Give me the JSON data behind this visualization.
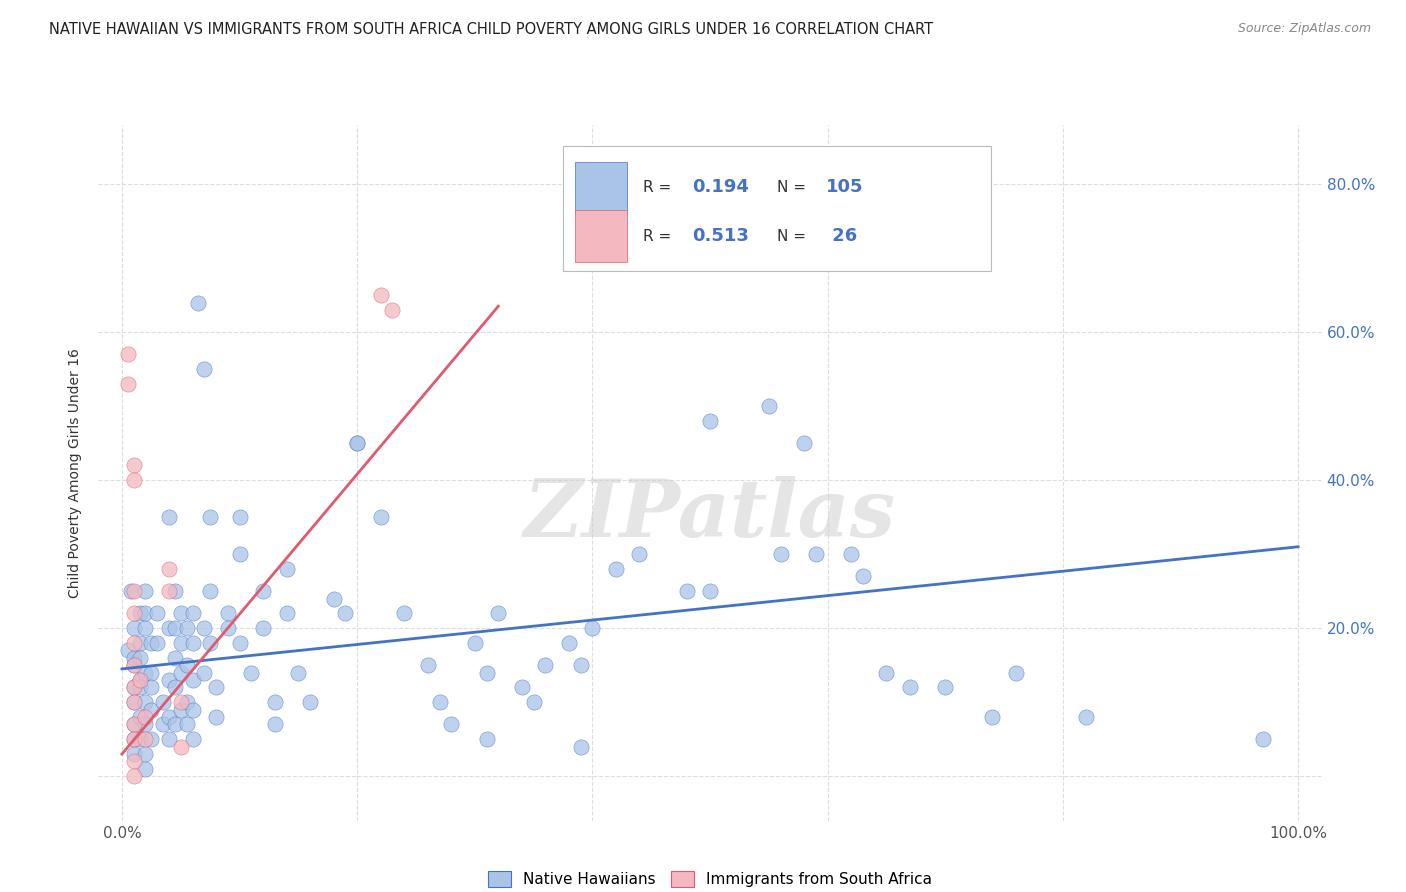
{
  "title": "NATIVE HAWAIIAN VS IMMIGRANTS FROM SOUTH AFRICA CHILD POVERTY AMONG GIRLS UNDER 16 CORRELATION CHART",
  "source": "Source: ZipAtlas.com",
  "ylabel": "Child Poverty Among Girls Under 16",
  "xlim": [
    -0.02,
    1.02
  ],
  "ylim": [
    -0.06,
    0.88
  ],
  "xticks": [
    0.0,
    0.2,
    0.4,
    0.6,
    0.8,
    1.0
  ],
  "xticklabels": [
    "0.0%",
    "",
    "",
    "",
    "",
    "100.0%"
  ],
  "yticks": [
    0.0,
    0.2,
    0.4,
    0.6,
    0.8
  ],
  "yticklabels_right": [
    "",
    "20.0%",
    "40.0%",
    "60.0%",
    "80.0%"
  ],
  "grid_color": "#dddddd",
  "background_color": "#ffffff",
  "watermark": "ZIPatlas",
  "label1": "Native Hawaiians",
  "label2": "Immigrants from South Africa",
  "color1": "#aac4e8",
  "color2": "#f4b8c0",
  "line_color1": "#4472c4",
  "line_color2": "#e05a6e",
  "r_n_color": "#4472c4",
  "blue_scatter": [
    [
      0.005,
      0.17
    ],
    [
      0.008,
      0.25
    ],
    [
      0.01,
      0.2
    ],
    [
      0.01,
      0.16
    ],
    [
      0.01,
      0.1
    ],
    [
      0.01,
      0.07
    ],
    [
      0.01,
      0.05
    ],
    [
      0.01,
      0.12
    ],
    [
      0.01,
      0.03
    ],
    [
      0.01,
      0.15
    ],
    [
      0.015,
      0.22
    ],
    [
      0.015,
      0.18
    ],
    [
      0.015,
      0.13
    ],
    [
      0.015,
      0.08
    ],
    [
      0.015,
      0.05
    ],
    [
      0.015,
      0.12
    ],
    [
      0.015,
      0.16
    ],
    [
      0.02,
      0.25
    ],
    [
      0.02,
      0.2
    ],
    [
      0.02,
      0.22
    ],
    [
      0.02,
      0.1
    ],
    [
      0.02,
      0.07
    ],
    [
      0.02,
      0.14
    ],
    [
      0.02,
      0.03
    ],
    [
      0.02,
      0.01
    ],
    [
      0.025,
      0.18
    ],
    [
      0.025,
      0.14
    ],
    [
      0.025,
      0.09
    ],
    [
      0.025,
      0.05
    ],
    [
      0.025,
      0.12
    ],
    [
      0.03,
      0.22
    ],
    [
      0.03,
      0.18
    ],
    [
      0.035,
      0.1
    ],
    [
      0.035,
      0.07
    ],
    [
      0.04,
      0.2
    ],
    [
      0.04,
      0.35
    ],
    [
      0.04,
      0.13
    ],
    [
      0.04,
      0.08
    ],
    [
      0.04,
      0.05
    ],
    [
      0.045,
      0.25
    ],
    [
      0.045,
      0.2
    ],
    [
      0.045,
      0.16
    ],
    [
      0.045,
      0.12
    ],
    [
      0.045,
      0.07
    ],
    [
      0.05,
      0.18
    ],
    [
      0.05,
      0.22
    ],
    [
      0.05,
      0.09
    ],
    [
      0.05,
      0.14
    ],
    [
      0.055,
      0.2
    ],
    [
      0.055,
      0.15
    ],
    [
      0.055,
      0.1
    ],
    [
      0.055,
      0.07
    ],
    [
      0.06,
      0.22
    ],
    [
      0.06,
      0.18
    ],
    [
      0.06,
      0.13
    ],
    [
      0.06,
      0.09
    ],
    [
      0.06,
      0.05
    ],
    [
      0.065,
      0.64
    ],
    [
      0.07,
      0.55
    ],
    [
      0.07,
      0.14
    ],
    [
      0.07,
      0.2
    ],
    [
      0.075,
      0.25
    ],
    [
      0.075,
      0.35
    ],
    [
      0.075,
      0.18
    ],
    [
      0.08,
      0.12
    ],
    [
      0.08,
      0.08
    ],
    [
      0.09,
      0.22
    ],
    [
      0.09,
      0.2
    ],
    [
      0.1,
      0.35
    ],
    [
      0.1,
      0.3
    ],
    [
      0.1,
      0.18
    ],
    [
      0.11,
      0.14
    ],
    [
      0.12,
      0.25
    ],
    [
      0.12,
      0.2
    ],
    [
      0.13,
      0.1
    ],
    [
      0.13,
      0.07
    ],
    [
      0.14,
      0.28
    ],
    [
      0.14,
      0.22
    ],
    [
      0.15,
      0.14
    ],
    [
      0.16,
      0.1
    ],
    [
      0.18,
      0.24
    ],
    [
      0.19,
      0.22
    ],
    [
      0.2,
      0.45
    ],
    [
      0.2,
      0.45
    ],
    [
      0.22,
      0.35
    ],
    [
      0.24,
      0.22
    ],
    [
      0.26,
      0.15
    ],
    [
      0.27,
      0.1
    ],
    [
      0.28,
      0.07
    ],
    [
      0.3,
      0.18
    ],
    [
      0.31,
      0.14
    ],
    [
      0.31,
      0.05
    ],
    [
      0.32,
      0.22
    ],
    [
      0.34,
      0.12
    ],
    [
      0.35,
      0.1
    ],
    [
      0.36,
      0.15
    ],
    [
      0.38,
      0.18
    ],
    [
      0.39,
      0.15
    ],
    [
      0.39,
      0.04
    ],
    [
      0.4,
      0.2
    ],
    [
      0.42,
      0.28
    ],
    [
      0.44,
      0.3
    ],
    [
      0.46,
      0.72
    ],
    [
      0.48,
      0.25
    ],
    [
      0.5,
      0.48
    ],
    [
      0.5,
      0.25
    ],
    [
      0.55,
      0.5
    ],
    [
      0.56,
      0.3
    ],
    [
      0.58,
      0.45
    ],
    [
      0.59,
      0.3
    ],
    [
      0.62,
      0.3
    ],
    [
      0.63,
      0.27
    ],
    [
      0.65,
      0.14
    ],
    [
      0.67,
      0.12
    ],
    [
      0.7,
      0.12
    ],
    [
      0.74,
      0.08
    ],
    [
      0.76,
      0.14
    ],
    [
      0.82,
      0.08
    ],
    [
      0.97,
      0.05
    ]
  ],
  "pink_scatter": [
    [
      0.005,
      0.57
    ],
    [
      0.005,
      0.53
    ],
    [
      0.01,
      0.42
    ],
    [
      0.01,
      0.4
    ],
    [
      0.01,
      0.25
    ],
    [
      0.01,
      0.22
    ],
    [
      0.01,
      0.18
    ],
    [
      0.01,
      0.15
    ],
    [
      0.01,
      0.12
    ],
    [
      0.01,
      0.1
    ],
    [
      0.01,
      0.07
    ],
    [
      0.01,
      0.05
    ],
    [
      0.01,
      0.02
    ],
    [
      0.01,
      0.0
    ],
    [
      0.015,
      0.13
    ],
    [
      0.02,
      0.08
    ],
    [
      0.02,
      0.05
    ],
    [
      0.04,
      0.28
    ],
    [
      0.04,
      0.25
    ],
    [
      0.05,
      0.1
    ],
    [
      0.05,
      0.04
    ],
    [
      0.22,
      0.65
    ],
    [
      0.23,
      0.63
    ]
  ],
  "blue_line": [
    [
      0.0,
      0.145
    ],
    [
      1.0,
      0.31
    ]
  ],
  "pink_line": [
    [
      0.0,
      0.03
    ],
    [
      0.32,
      0.635
    ]
  ]
}
